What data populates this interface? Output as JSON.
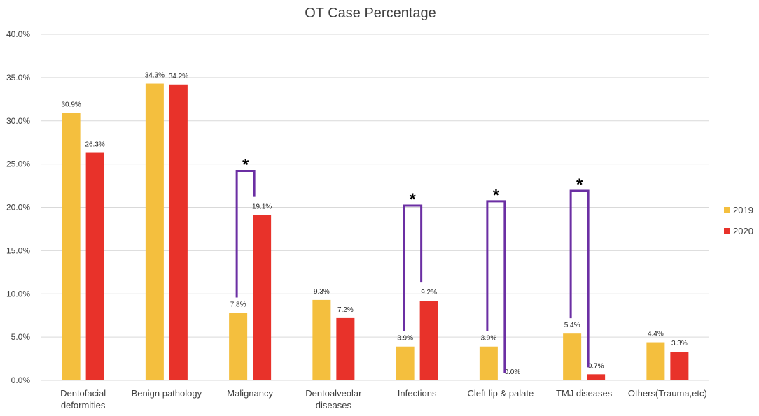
{
  "chart_data": {
    "type": "bar",
    "title": "OT Case Percentage",
    "xlabel": "",
    "ylabel": "",
    "ylim": [
      0,
      40
    ],
    "y_ticks": [
      "0.0%",
      "5.0%",
      "10.0%",
      "15.0%",
      "20.0%",
      "25.0%",
      "30.0%",
      "35.0%",
      "40.0%"
    ],
    "grid": true,
    "legend_position": "right",
    "categories": [
      [
        "Dentofacial",
        "deformities"
      ],
      [
        "Benign pathology"
      ],
      [
        "Malignancy"
      ],
      [
        "Dentoalveolar",
        "diseases"
      ],
      [
        "Infections"
      ],
      [
        "Cleft lip & palate"
      ],
      [
        "TMJ diseases"
      ],
      [
        "Others(Trauma,etc)"
      ]
    ],
    "series": [
      {
        "name": "2019",
        "color": "#f4bf3e",
        "values": [
          30.9,
          34.3,
          7.8,
          9.3,
          3.9,
          3.9,
          5.4,
          4.4
        ],
        "labels": [
          "30.9%",
          "34.3%",
          "7.8%",
          "9.3%",
          "3.9%",
          "3.9%",
          "5.4%",
          "4.4%"
        ]
      },
      {
        "name": "2020",
        "color": "#e8322a",
        "values": [
          26.3,
          34.2,
          19.1,
          7.2,
          9.2,
          0.0,
          0.7,
          3.3
        ],
        "labels": [
          "26.3%",
          "34.2%",
          "19.1%",
          "7.2%",
          "9.2%",
          "0.0%",
          "0.7%",
          "3.3%"
        ]
      }
    ],
    "significance": {
      "marker": "*",
      "color": "#6b2fa3",
      "brackets": [
        {
          "category_index": 2,
          "top_value": 24.2
        },
        {
          "category_index": 4,
          "top_value": 20.2
        },
        {
          "category_index": 5,
          "top_value": 20.7
        },
        {
          "category_index": 6,
          "top_value": 21.9
        }
      ]
    }
  }
}
